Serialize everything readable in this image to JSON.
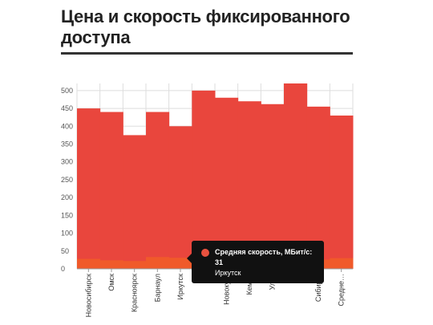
{
  "page": {
    "title": "Цена и скорость фиксированного доступа"
  },
  "colors": {
    "price": "#e9463d",
    "speed": "#f05a2a",
    "grid": "#dddddd",
    "title_rule": "#333333"
  },
  "tooltip": {
    "series_label": "Средняя скорость, МБит/с:",
    "value": "31",
    "category": "Иркутск"
  },
  "chart_data": {
    "type": "bar",
    "title": "Цена и скорость фиксированного доступа",
    "xlabel": "",
    "ylabel": "",
    "ylim": [
      0,
      520
    ],
    "yticks": [
      0,
      50,
      100,
      150,
      200,
      250,
      300,
      350,
      400,
      450,
      500
    ],
    "grid": true,
    "legend": "none",
    "categories": [
      "Новосибирск",
      "Омск",
      "Красноярск",
      "Барнаул",
      "Иркутск",
      "Т…",
      "Новокузн…",
      "Кемер…",
      "Улан-…",
      "…",
      "Сибирск…",
      "Средне…"
    ],
    "category_labels_shown": [
      "Новосибирск",
      "Омск",
      "Красноярск",
      "Барнаул",
      "Иркутск",
      "Т",
      "Новокузн",
      "Кемер",
      "Улан",
      "",
      "Сибирск",
      "Средне…"
    ],
    "series": [
      {
        "key": "price",
        "values": [
          450,
          440,
          375,
          440,
          400,
          500,
          480,
          470,
          462,
          520,
          455,
          430
        ]
      },
      {
        "key": "speed",
        "name": "Средняя скорость, МБит/с",
        "values": [
          28,
          24,
          22,
          33,
          31,
          30,
          27,
          25,
          24,
          29,
          26,
          30
        ]
      }
    ]
  }
}
